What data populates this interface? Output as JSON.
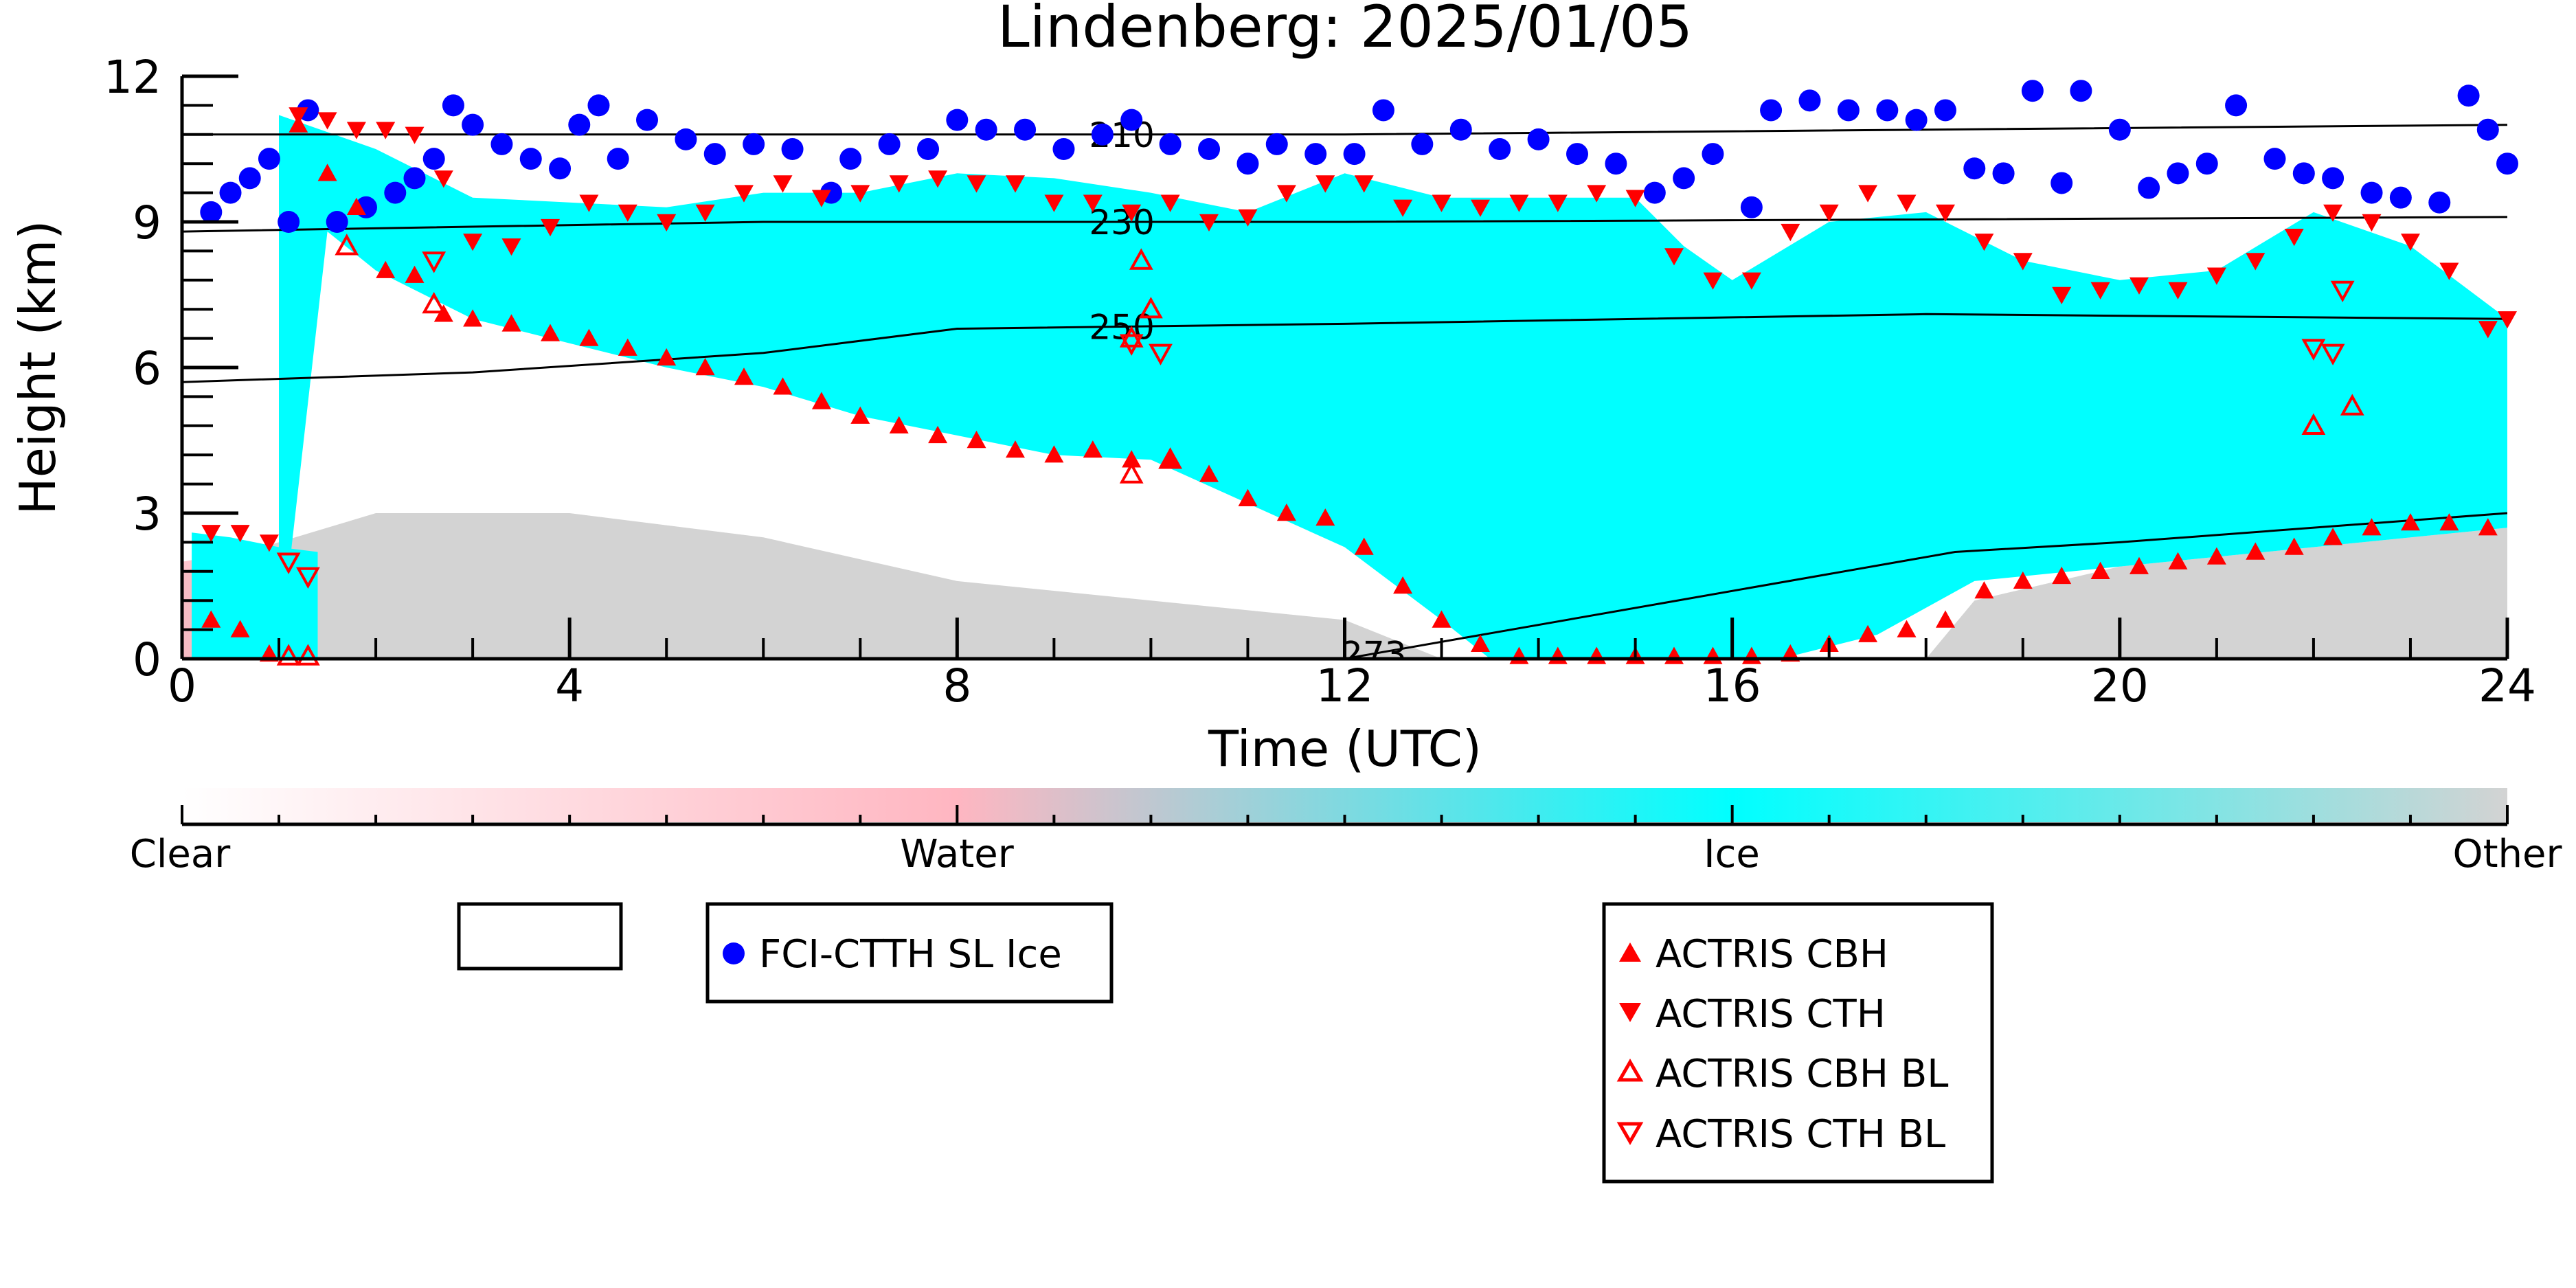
{
  "chart_data": {
    "type": "scatter",
    "title": "Lindenberg: 2025/01/05",
    "xlabel": "Time (UTC)",
    "ylabel": "Height (km)",
    "xlim": [
      0,
      24
    ],
    "ylim": [
      0,
      12
    ],
    "xticks": [
      "0",
      "4",
      "8",
      "12",
      "16",
      "20",
      "24"
    ],
    "yticks": [
      "0",
      "3",
      "6",
      "9",
      "12"
    ],
    "grid": false,
    "background_classification": {
      "colorbar_labels": [
        "Clear",
        "Water",
        "Ice",
        "Other"
      ],
      "colors": {
        "clear": "#ffffff",
        "water": "#ffb6c1",
        "ice": "#00ffff",
        "other": "#d3d3d3"
      },
      "ice_top_km": [
        [
          1.0,
          11.2
        ],
        [
          2.0,
          10.5
        ],
        [
          3.0,
          9.5
        ],
        [
          4.0,
          9.4
        ],
        [
          5.0,
          9.3
        ],
        [
          6.0,
          9.6
        ],
        [
          7.0,
          9.6
        ],
        [
          8.0,
          10.0
        ],
        [
          9.0,
          9.9
        ],
        [
          10.0,
          9.6
        ],
        [
          11.0,
          9.2
        ],
        [
          12.0,
          10.0
        ],
        [
          13.0,
          9.5
        ],
        [
          14.0,
          9.5
        ],
        [
          15.0,
          9.5
        ],
        [
          15.5,
          8.5
        ],
        [
          16.0,
          7.8
        ],
        [
          17.0,
          9.0
        ],
        [
          18.0,
          9.2
        ],
        [
          19.0,
          8.2
        ],
        [
          20.0,
          7.8
        ],
        [
          21.0,
          8.0
        ],
        [
          22.0,
          9.2
        ],
        [
          23.0,
          8.5
        ],
        [
          24.0,
          7.0
        ]
      ],
      "ice_base_km": [
        [
          1.0,
          0.0
        ],
        [
          1.5,
          8.8
        ],
        [
          2.0,
          8.0
        ],
        [
          3.0,
          7.0
        ],
        [
          4.0,
          6.5
        ],
        [
          5.0,
          6.0
        ],
        [
          6.0,
          5.6
        ],
        [
          7.0,
          5.0
        ],
        [
          8.0,
          4.6
        ],
        [
          9.0,
          4.2
        ],
        [
          10.0,
          4.1
        ],
        [
          11.0,
          3.2
        ],
        [
          12.0,
          2.3
        ],
        [
          13.0,
          0.8
        ],
        [
          13.5,
          0.0
        ],
        [
          16.5,
          0.0
        ],
        [
          17.5,
          0.5
        ],
        [
          18.5,
          1.6
        ],
        [
          20.0,
          1.9
        ],
        [
          22.0,
          2.3
        ],
        [
          24.0,
          2.7
        ]
      ],
      "other_top_km": [
        [
          0.0,
          1.8
        ],
        [
          2.0,
          3.0
        ],
        [
          4.0,
          3.0
        ],
        [
          6.0,
          2.5
        ],
        [
          8.0,
          1.6
        ],
        [
          10.0,
          1.2
        ],
        [
          12.0,
          0.8
        ],
        [
          13.0,
          0.0
        ],
        [
          18.0,
          0.0
        ],
        [
          18.5,
          1.2
        ],
        [
          20.0,
          1.9
        ],
        [
          22.0,
          2.3
        ],
        [
          24.0,
          2.7
        ]
      ]
    },
    "contours": [
      {
        "label": "210",
        "points": [
          [
            0,
            10.8
          ],
          [
            12,
            10.8
          ],
          [
            24,
            11.0
          ]
        ]
      },
      {
        "label": "230",
        "points": [
          [
            0,
            8.8
          ],
          [
            6,
            9.0
          ],
          [
            12,
            9.0
          ],
          [
            24,
            9.1
          ]
        ]
      },
      {
        "label": "250",
        "points": [
          [
            0,
            5.7
          ],
          [
            3,
            5.9
          ],
          [
            6,
            6.3
          ],
          [
            8,
            6.8
          ],
          [
            12,
            6.9
          ],
          [
            18,
            7.1
          ],
          [
            24,
            7.0
          ]
        ]
      },
      {
        "label": "273",
        "points": [
          [
            12,
            0.0
          ],
          [
            18.3,
            2.2
          ],
          [
            20,
            2.4
          ],
          [
            24,
            3.0
          ]
        ]
      }
    ],
    "series": [
      {
        "name": "FCI-CTTH SL Ice",
        "marker": "circle",
        "color": "#0000ff",
        "points": [
          [
            0.3,
            9.2
          ],
          [
            0.5,
            9.6
          ],
          [
            0.7,
            9.9
          ],
          [
            0.9,
            10.3
          ],
          [
            1.1,
            9.0
          ],
          [
            1.3,
            11.3
          ],
          [
            1.6,
            9.0
          ],
          [
            1.9,
            9.3
          ],
          [
            2.2,
            9.6
          ],
          [
            2.4,
            9.9
          ],
          [
            2.6,
            10.3
          ],
          [
            2.8,
            11.4
          ],
          [
            3.0,
            11.0
          ],
          [
            3.3,
            10.6
          ],
          [
            3.6,
            10.3
          ],
          [
            3.9,
            10.1
          ],
          [
            4.1,
            11.0
          ],
          [
            4.3,
            11.4
          ],
          [
            4.5,
            10.3
          ],
          [
            4.8,
            11.1
          ],
          [
            5.2,
            10.7
          ],
          [
            5.5,
            10.4
          ],
          [
            5.9,
            10.6
          ],
          [
            6.3,
            10.5
          ],
          [
            6.7,
            9.6
          ],
          [
            6.9,
            10.3
          ],
          [
            7.3,
            10.6
          ],
          [
            7.7,
            10.5
          ],
          [
            8.0,
            11.1
          ],
          [
            8.3,
            10.9
          ],
          [
            8.7,
            10.9
          ],
          [
            9.1,
            10.5
          ],
          [
            9.5,
            10.8
          ],
          [
            9.8,
            11.1
          ],
          [
            10.2,
            10.6
          ],
          [
            10.6,
            10.5
          ],
          [
            11.0,
            10.2
          ],
          [
            11.3,
            10.6
          ],
          [
            11.7,
            10.4
          ],
          [
            12.1,
            10.4
          ],
          [
            12.4,
            11.3
          ],
          [
            12.8,
            10.6
          ],
          [
            13.2,
            10.9
          ],
          [
            13.6,
            10.5
          ],
          [
            14.0,
            10.7
          ],
          [
            14.4,
            10.4
          ],
          [
            14.8,
            10.2
          ],
          [
            15.2,
            9.6
          ],
          [
            15.5,
            9.9
          ],
          [
            15.8,
            10.4
          ],
          [
            16.2,
            9.3
          ],
          [
            16.4,
            11.3
          ],
          [
            16.8,
            11.5
          ],
          [
            17.2,
            11.3
          ],
          [
            17.6,
            11.3
          ],
          [
            17.9,
            11.1
          ],
          [
            18.2,
            11.3
          ],
          [
            18.5,
            10.1
          ],
          [
            18.8,
            10.0
          ],
          [
            19.1,
            11.7
          ],
          [
            19.4,
            9.8
          ],
          [
            19.6,
            11.7
          ],
          [
            20.0,
            10.9
          ],
          [
            20.3,
            9.7
          ],
          [
            20.6,
            10.0
          ],
          [
            20.9,
            10.2
          ],
          [
            21.2,
            11.4
          ],
          [
            21.6,
            10.3
          ],
          [
            21.9,
            10.0
          ],
          [
            22.2,
            9.9
          ],
          [
            22.6,
            9.6
          ],
          [
            22.9,
            9.5
          ],
          [
            23.3,
            9.4
          ],
          [
            23.6,
            11.6
          ],
          [
            23.8,
            10.9
          ],
          [
            24.0,
            10.2
          ]
        ]
      },
      {
        "name": "ACTRIS CBH",
        "marker": "triangle-up",
        "color": "#ff0000",
        "filled": true,
        "points": [
          [
            0.3,
            0.8
          ],
          [
            0.6,
            0.6
          ],
          [
            0.9,
            0.1
          ],
          [
            1.2,
            11.0
          ],
          [
            1.5,
            10.0
          ],
          [
            1.8,
            9.3
          ],
          [
            2.1,
            8.0
          ],
          [
            2.4,
            7.9
          ],
          [
            2.7,
            7.1
          ],
          [
            3.0,
            7.0
          ],
          [
            3.4,
            6.9
          ],
          [
            3.8,
            6.7
          ],
          [
            4.2,
            6.6
          ],
          [
            4.6,
            6.4
          ],
          [
            5.0,
            6.2
          ],
          [
            5.4,
            6.0
          ],
          [
            5.8,
            5.8
          ],
          [
            6.2,
            5.6
          ],
          [
            6.6,
            5.3
          ],
          [
            7.0,
            5.0
          ],
          [
            7.4,
            4.8
          ],
          [
            7.8,
            4.6
          ],
          [
            8.2,
            4.5
          ],
          [
            8.6,
            4.3
          ],
          [
            9.0,
            4.2
          ],
          [
            9.4,
            4.3
          ],
          [
            9.8,
            4.1
          ],
          [
            10.2,
            4.1
          ],
          [
            10.6,
            3.8
          ],
          [
            11.0,
            3.3
          ],
          [
            11.4,
            3.0
          ],
          [
            11.8,
            2.9
          ],
          [
            12.2,
            2.3
          ],
          [
            12.6,
            1.5
          ],
          [
            13.0,
            0.8
          ],
          [
            13.4,
            0.3
          ],
          [
            13.8,
            0.05
          ],
          [
            14.2,
            0.05
          ],
          [
            14.6,
            0.05
          ],
          [
            15.0,
            0.05
          ],
          [
            15.4,
            0.05
          ],
          [
            15.8,
            0.05
          ],
          [
            16.2,
            0.05
          ],
          [
            16.6,
            0.1
          ],
          [
            17.0,
            0.3
          ],
          [
            17.4,
            0.5
          ],
          [
            17.8,
            0.6
          ],
          [
            18.2,
            0.8
          ],
          [
            18.6,
            1.4
          ],
          [
            19.0,
            1.6
          ],
          [
            19.4,
            1.7
          ],
          [
            19.8,
            1.8
          ],
          [
            20.2,
            1.9
          ],
          [
            20.6,
            2.0
          ],
          [
            21.0,
            2.1
          ],
          [
            21.4,
            2.2
          ],
          [
            21.8,
            2.3
          ],
          [
            22.2,
            2.5
          ],
          [
            22.6,
            2.7
          ],
          [
            23.0,
            2.8
          ],
          [
            23.4,
            2.8
          ],
          [
            23.8,
            2.7
          ]
        ]
      },
      {
        "name": "ACTRIS CTH",
        "marker": "triangle-down",
        "color": "#ff0000",
        "filled": true,
        "points": [
          [
            0.3,
            2.6
          ],
          [
            0.6,
            2.6
          ],
          [
            0.9,
            2.4
          ],
          [
            1.2,
            11.2
          ],
          [
            1.5,
            11.1
          ],
          [
            1.8,
            10.9
          ],
          [
            2.1,
            10.9
          ],
          [
            2.4,
            10.8
          ],
          [
            2.7,
            9.9
          ],
          [
            3.0,
            8.6
          ],
          [
            3.4,
            8.5
          ],
          [
            3.8,
            8.9
          ],
          [
            4.2,
            9.4
          ],
          [
            4.6,
            9.2
          ],
          [
            5.0,
            9.0
          ],
          [
            5.4,
            9.2
          ],
          [
            5.8,
            9.6
          ],
          [
            6.2,
            9.8
          ],
          [
            6.6,
            9.5
          ],
          [
            7.0,
            9.6
          ],
          [
            7.4,
            9.8
          ],
          [
            7.8,
            9.9
          ],
          [
            8.2,
            9.8
          ],
          [
            8.6,
            9.8
          ],
          [
            9.0,
            9.4
          ],
          [
            9.4,
            9.4
          ],
          [
            9.8,
            9.2
          ],
          [
            10.2,
            9.4
          ],
          [
            10.6,
            9.0
          ],
          [
            11.0,
            9.1
          ],
          [
            11.4,
            9.6
          ],
          [
            11.8,
            9.8
          ],
          [
            12.2,
            9.8
          ],
          [
            12.6,
            9.3
          ],
          [
            13.0,
            9.4
          ],
          [
            13.4,
            9.3
          ],
          [
            13.8,
            9.4
          ],
          [
            14.2,
            9.4
          ],
          [
            14.6,
            9.6
          ],
          [
            15.0,
            9.5
          ],
          [
            15.4,
            8.3
          ],
          [
            15.8,
            7.8
          ],
          [
            16.2,
            7.8
          ],
          [
            16.6,
            8.8
          ],
          [
            17.0,
            9.2
          ],
          [
            17.4,
            9.6
          ],
          [
            17.8,
            9.4
          ],
          [
            18.2,
            9.2
          ],
          [
            18.6,
            8.6
          ],
          [
            19.0,
            8.2
          ],
          [
            19.4,
            7.5
          ],
          [
            19.8,
            7.6
          ],
          [
            20.2,
            7.7
          ],
          [
            20.6,
            7.6
          ],
          [
            21.0,
            7.9
          ],
          [
            21.4,
            8.2
          ],
          [
            21.8,
            8.7
          ],
          [
            22.2,
            9.2
          ],
          [
            22.6,
            9.0
          ],
          [
            23.0,
            8.6
          ],
          [
            23.4,
            8.0
          ],
          [
            23.8,
            6.8
          ],
          [
            24.0,
            7.0
          ]
        ]
      },
      {
        "name": "ACTRIS CBH BL",
        "marker": "triangle-up",
        "color": "#ff0000",
        "filled": false,
        "points": [
          [
            1.1,
            0.05
          ],
          [
            1.3,
            0.05
          ],
          [
            1.7,
            8.5
          ],
          [
            2.6,
            7.3
          ],
          [
            9.8,
            3.8
          ],
          [
            9.8,
            6.6
          ],
          [
            9.9,
            8.2
          ],
          [
            10.0,
            7.2
          ],
          [
            10.2,
            4.1
          ],
          [
            22.0,
            4.8
          ],
          [
            22.4,
            5.2
          ]
        ]
      },
      {
        "name": "ACTRIS CTH BL",
        "marker": "triangle-down",
        "color": "#ff0000",
        "filled": false,
        "points": [
          [
            1.1,
            2.0
          ],
          [
            1.3,
            1.7
          ],
          [
            2.6,
            8.2
          ],
          [
            9.8,
            6.5
          ],
          [
            10.1,
            6.3
          ],
          [
            22.0,
            6.4
          ],
          [
            22.2,
            6.3
          ],
          [
            22.3,
            7.6
          ]
        ]
      }
    ],
    "legend_upper_left_box": "",
    "legend_fci": [
      "FCI-CTTH SL Ice"
    ],
    "legend_actris": [
      "ACTRIS CBH",
      "ACTRIS CTH",
      "ACTRIS CBH BL",
      "ACTRIS CTH BL"
    ]
  }
}
